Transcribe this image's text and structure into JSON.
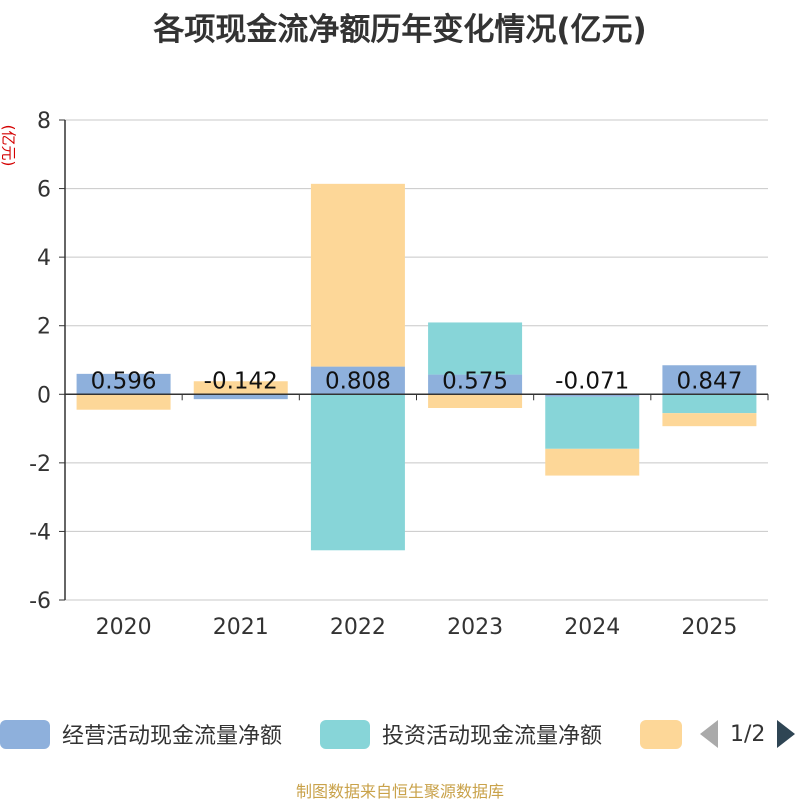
{
  "chart_data": {
    "type": "bar",
    "stacked": true,
    "title": "各项现金流净额历年变化情况(亿元)",
    "ylabel": "(亿元)",
    "ylim": [
      -6,
      8
    ],
    "yticks": [
      -6,
      -4,
      -2,
      0,
      2,
      4,
      6,
      8
    ],
    "categories": [
      "2020",
      "2021",
      "2022",
      "2023",
      "2024",
      "2025"
    ],
    "series": [
      {
        "name": "经营活动现金流量净额",
        "color": "#8eb0dc",
        "values": [
          0.596,
          -0.142,
          0.808,
          0.575,
          -0.071,
          0.847
        ],
        "labels": [
          "0.596",
          "-0.142",
          "0.808",
          "0.575",
          "-0.071",
          "0.847"
        ]
      },
      {
        "name": "投资活动现金流量净额",
        "color": "#87d5d8",
        "values": [
          0.0,
          0.0,
          -4.55,
          1.52,
          -1.52,
          -0.55
        ]
      },
      {
        "name": "",
        "color": "#fdd798",
        "values": [
          -0.45,
          0.38,
          5.33,
          -0.4,
          -0.78,
          -0.38
        ]
      }
    ],
    "legend_position": "bottom",
    "grid": true
  },
  "legend": {
    "items": [
      {
        "label": "经营活动现金流量净额",
        "color": "#8eb0dc"
      },
      {
        "label": "投资活动现金流量净额",
        "color": "#87d5d8"
      },
      {
        "label": "",
        "color": "#fdd798"
      }
    ],
    "page": "1/2"
  },
  "source": "制图数据来自恒生聚源数据库"
}
